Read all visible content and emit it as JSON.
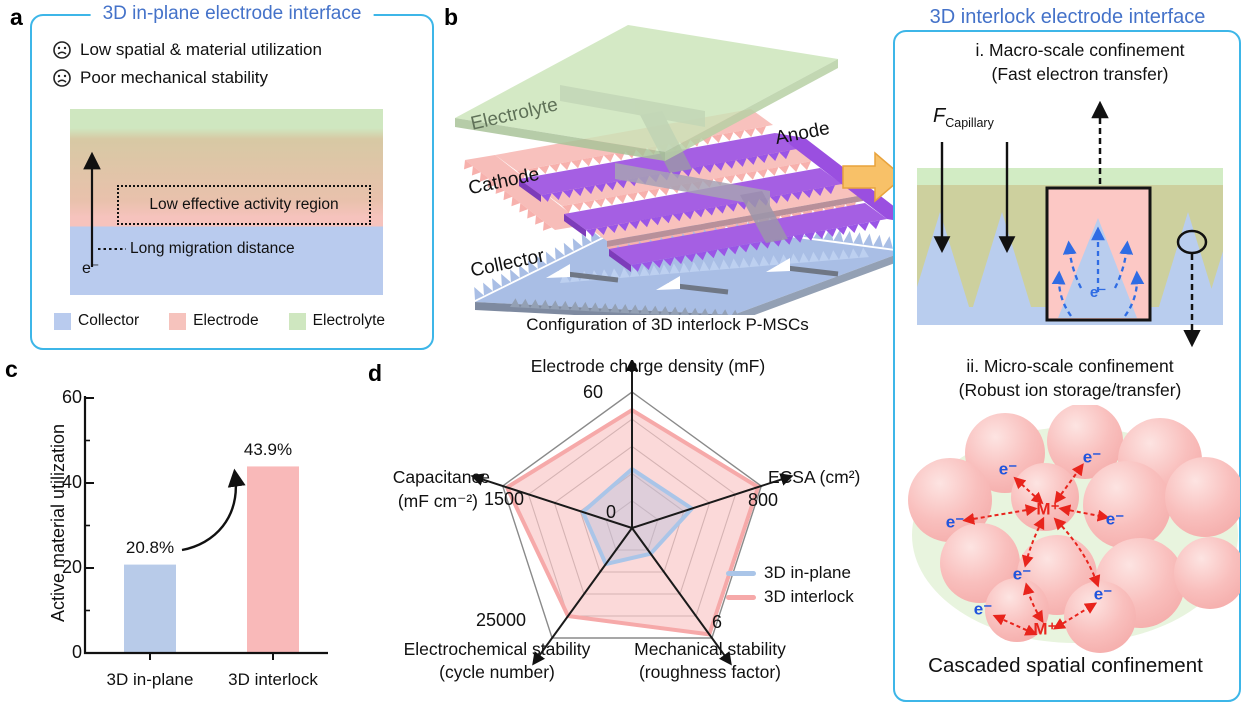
{
  "colors": {
    "title_blue": "#4472c9",
    "border_cyan": "#3db6e8",
    "collector_blue": "#b9cbee",
    "electrode_pink": "#f6c3bd",
    "electrolyte_green": "#cfe7c0",
    "anode_purple": "#a55fe3",
    "arrow_orange": "#f8c168"
  },
  "panels": {
    "a": {
      "label": "a",
      "title": "3D in-plane electrode interface",
      "issues": [
        "Low spatial & material utilization",
        "Poor mechanical stability"
      ],
      "activity_box_label": "Low effective activity region",
      "migration_label": "Long migration distance",
      "electron_label": "e⁻",
      "legend": [
        {
          "label": "Collector",
          "color": "#b9cbee"
        },
        {
          "label": "Electrode",
          "color": "#f6c3bd"
        },
        {
          "label": "Electrolyte",
          "color": "#cfe7c0"
        }
      ]
    },
    "b": {
      "label": "b",
      "labels": {
        "electrolyte": "Electrolyte",
        "anode": "Anode",
        "cathode": "Cathode",
        "collector": "Collector"
      },
      "caption": "Configuration of 3D interlock P-MSCs"
    },
    "c": {
      "label": "c"
    },
    "d": {
      "label": "d"
    },
    "right": {
      "title": "3D interlock electrode interface",
      "macro_title": "i. Macro-scale confinement",
      "macro_subtitle": "(Fast electron transfer)",
      "force_symbol": "F",
      "force_subscript": "Capillary",
      "electron_label": "e⁻",
      "micro_title": "ii. Micro-scale confinement",
      "micro_subtitle": "(Robust ion storage/transfer)",
      "ion_label": "M⁺",
      "caption": "Cascaded spatial confinement"
    }
  },
  "chart_data": [
    {
      "type": "bar",
      "panel": "c",
      "categories": [
        "3D in-plane",
        "3D interlock"
      ],
      "values": [
        20.8,
        43.9
      ],
      "value_labels": [
        "20.8%",
        "43.9%"
      ],
      "bar_colors": [
        "#b8cbe9",
        "#f9b9b9"
      ],
      "ylabel": "Active material utilization",
      "ylim": [
        0,
        60
      ],
      "yticks": [
        0,
        20,
        40,
        60
      ],
      "minor_yticks": [
        10,
        30,
        50
      ],
      "annotation": "curved arrow from 20.8% bar up to 43.9% bar"
    },
    {
      "type": "radar",
      "panel": "d",
      "center_label": "0",
      "rings": 5,
      "axes": [
        {
          "label": "Electrode charge density (mF)",
          "label_lines": [
            "Electrode charge density (mF)"
          ],
          "max": 60,
          "tick_label": "60"
        },
        {
          "label": "ECSA (cm²)",
          "label_lines": [
            "ECSA (cm²)"
          ],
          "max": 800,
          "tick_label": "800"
        },
        {
          "label": "Mechanical stability (roughness factor)",
          "label_lines": [
            "Mechanical stability",
            "(roughness factor)"
          ],
          "max": 6,
          "tick_label": "6"
        },
        {
          "label": "Electrochemical stability (cycle number)",
          "label_lines": [
            "Electrochemical stability",
            "(cycle number)"
          ],
          "max": 25000,
          "tick_label": "25000"
        },
        {
          "label": "Capacitance (mF cm⁻²)",
          "label_lines": [
            "Capacitance",
            "(mF cm⁻²)"
          ],
          "max": 1500,
          "tick_label": "1500"
        }
      ],
      "series": [
        {
          "name": "3D in-plane",
          "color": "#aac5e8",
          "fill": "rgba(176,190,222,0.38)",
          "values": [
            26,
            370,
            1.4,
            8200,
            570
          ]
        },
        {
          "name": "3D interlock",
          "color": "#f6a9a9",
          "fill": "rgba(248,186,186,0.55)",
          "values": [
            52,
            780,
            5.8,
            20000,
            1450
          ]
        }
      ],
      "legend_position": "right"
    }
  ]
}
